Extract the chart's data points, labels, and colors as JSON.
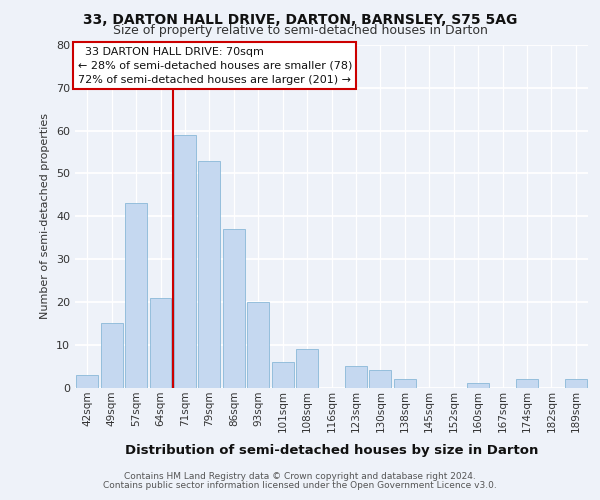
{
  "title_line1": "33, DARTON HALL DRIVE, DARTON, BARNSLEY, S75 5AG",
  "title_line2": "Size of property relative to semi-detached houses in Darton",
  "xlabel": "Distribution of semi-detached houses by size in Darton",
  "ylabel": "Number of semi-detached properties",
  "footer_line1": "Contains HM Land Registry data © Crown copyright and database right 2024.",
  "footer_line2": "Contains public sector information licensed under the Open Government Licence v3.0.",
  "categories": [
    "42sqm",
    "49sqm",
    "57sqm",
    "64sqm",
    "71sqm",
    "79sqm",
    "86sqm",
    "93sqm",
    "101sqm",
    "108sqm",
    "116sqm",
    "123sqm",
    "130sqm",
    "138sqm",
    "145sqm",
    "152sqm",
    "160sqm",
    "167sqm",
    "174sqm",
    "182sqm",
    "189sqm"
  ],
  "values": [
    3,
    15,
    43,
    21,
    59,
    53,
    37,
    20,
    6,
    9,
    0,
    5,
    4,
    2,
    0,
    0,
    1,
    0,
    2,
    0,
    2
  ],
  "bar_color": "#c5d8f0",
  "bar_edge_color": "#8ab8d8",
  "background_color": "#eef2f9",
  "ylim": [
    0,
    80
  ],
  "yticks": [
    0,
    10,
    20,
    30,
    40,
    50,
    60,
    70,
    80
  ],
  "vline_position": 3.5,
  "vline_color": "#cc0000",
  "property_label": "33 DARTON HALL DRIVE: 70sqm",
  "pct_smaller": 28,
  "pct_smaller_count": 78,
  "pct_larger": 72,
  "pct_larger_count": 201,
  "title_fontsize": 10,
  "subtitle_fontsize": 9,
  "ylabel_fontsize": 8,
  "xlabel_fontsize": 9.5,
  "footer_fontsize": 6.5,
  "tick_fontsize": 7.5,
  "ann_fontsize": 8
}
